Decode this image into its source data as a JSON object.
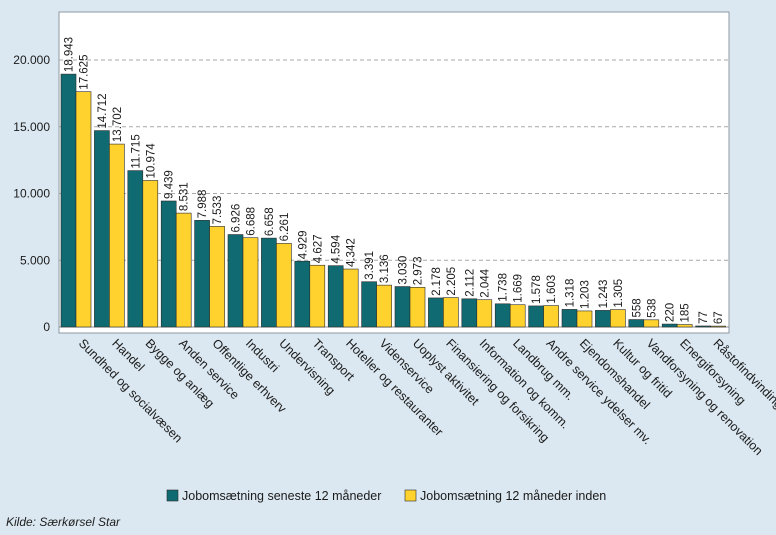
{
  "source_note": "Kilde: Særkørsel  Star",
  "colors": {
    "page_background": "#dbe8f1",
    "plot_background": "#ffffff",
    "series_1": "#0f6b71",
    "series_2": "#ffd22e",
    "grid": "#a9a9a9",
    "text": "#1b1b1b"
  },
  "chart_data": {
    "type": "bar",
    "title": "",
    "xlabel": "",
    "ylabel": "",
    "ylim": [
      0,
      22500
    ],
    "grid": true,
    "grid_style": "dashed-horizontal",
    "legend_placement": "bottom-center",
    "y_ticks": [
      {
        "value": 0,
        "label": "0"
      },
      {
        "value": 5000,
        "label": "5.000"
      },
      {
        "value": 10000,
        "label": "10.000"
      },
      {
        "value": 15000,
        "label": "15.000"
      },
      {
        "value": 20000,
        "label": "20.000"
      }
    ],
    "categories": [
      "Sundhed og socialvæsen",
      "Handel",
      "Bygge og anlæg",
      "Anden service",
      "Offentlige erhverv",
      "Industri",
      "Undervisning",
      "Transport",
      "Hoteller og restauranter",
      "Videnservice",
      "Uoplyst aktivitet",
      "Finansiering og forsikring",
      "Information og komm.",
      "Landbrug mm.",
      "Andre service ydelser mv.",
      "Ejendomshandel",
      "Kultur og fritid",
      "Vandforsyning og renovation",
      "Energiforsyning",
      "Råstofindvinding"
    ],
    "series": [
      {
        "name": "Jobomsætning seneste 12 måneder",
        "values": [
          18943,
          14712,
          11715,
          9439,
          7988,
          6926,
          6658,
          4929,
          4594,
          3391,
          3030,
          2178,
          2112,
          1738,
          1578,
          1318,
          1243,
          558,
          220,
          77
        ],
        "labels": [
          "18.943",
          "14.712",
          "11.715",
          "9.439",
          "7.988",
          "6.926",
          "6.658",
          "4.929",
          "4.594",
          "3.391",
          "3.030",
          "2.178",
          "2.112",
          "1.738",
          "1.578",
          "1.318",
          "1.243",
          "558",
          "220",
          "77"
        ]
      },
      {
        "name": "Jobomsætning 12 måneder inden",
        "values": [
          17625,
          13702,
          10974,
          8531,
          7533,
          6688,
          6261,
          4627,
          4342,
          3136,
          2973,
          2205,
          2044,
          1669,
          1603,
          1203,
          1305,
          538,
          185,
          67
        ],
        "labels": [
          "17.625",
          "13.702",
          "10.974",
          "8.531",
          "7.533",
          "6.688",
          "6.261",
          "4.627",
          "4.342",
          "3.136",
          "2.973",
          "2.205",
          "2.044",
          "1.669",
          "1.603",
          "1.203",
          "1.305",
          "538",
          "185",
          "67"
        ]
      }
    ]
  }
}
